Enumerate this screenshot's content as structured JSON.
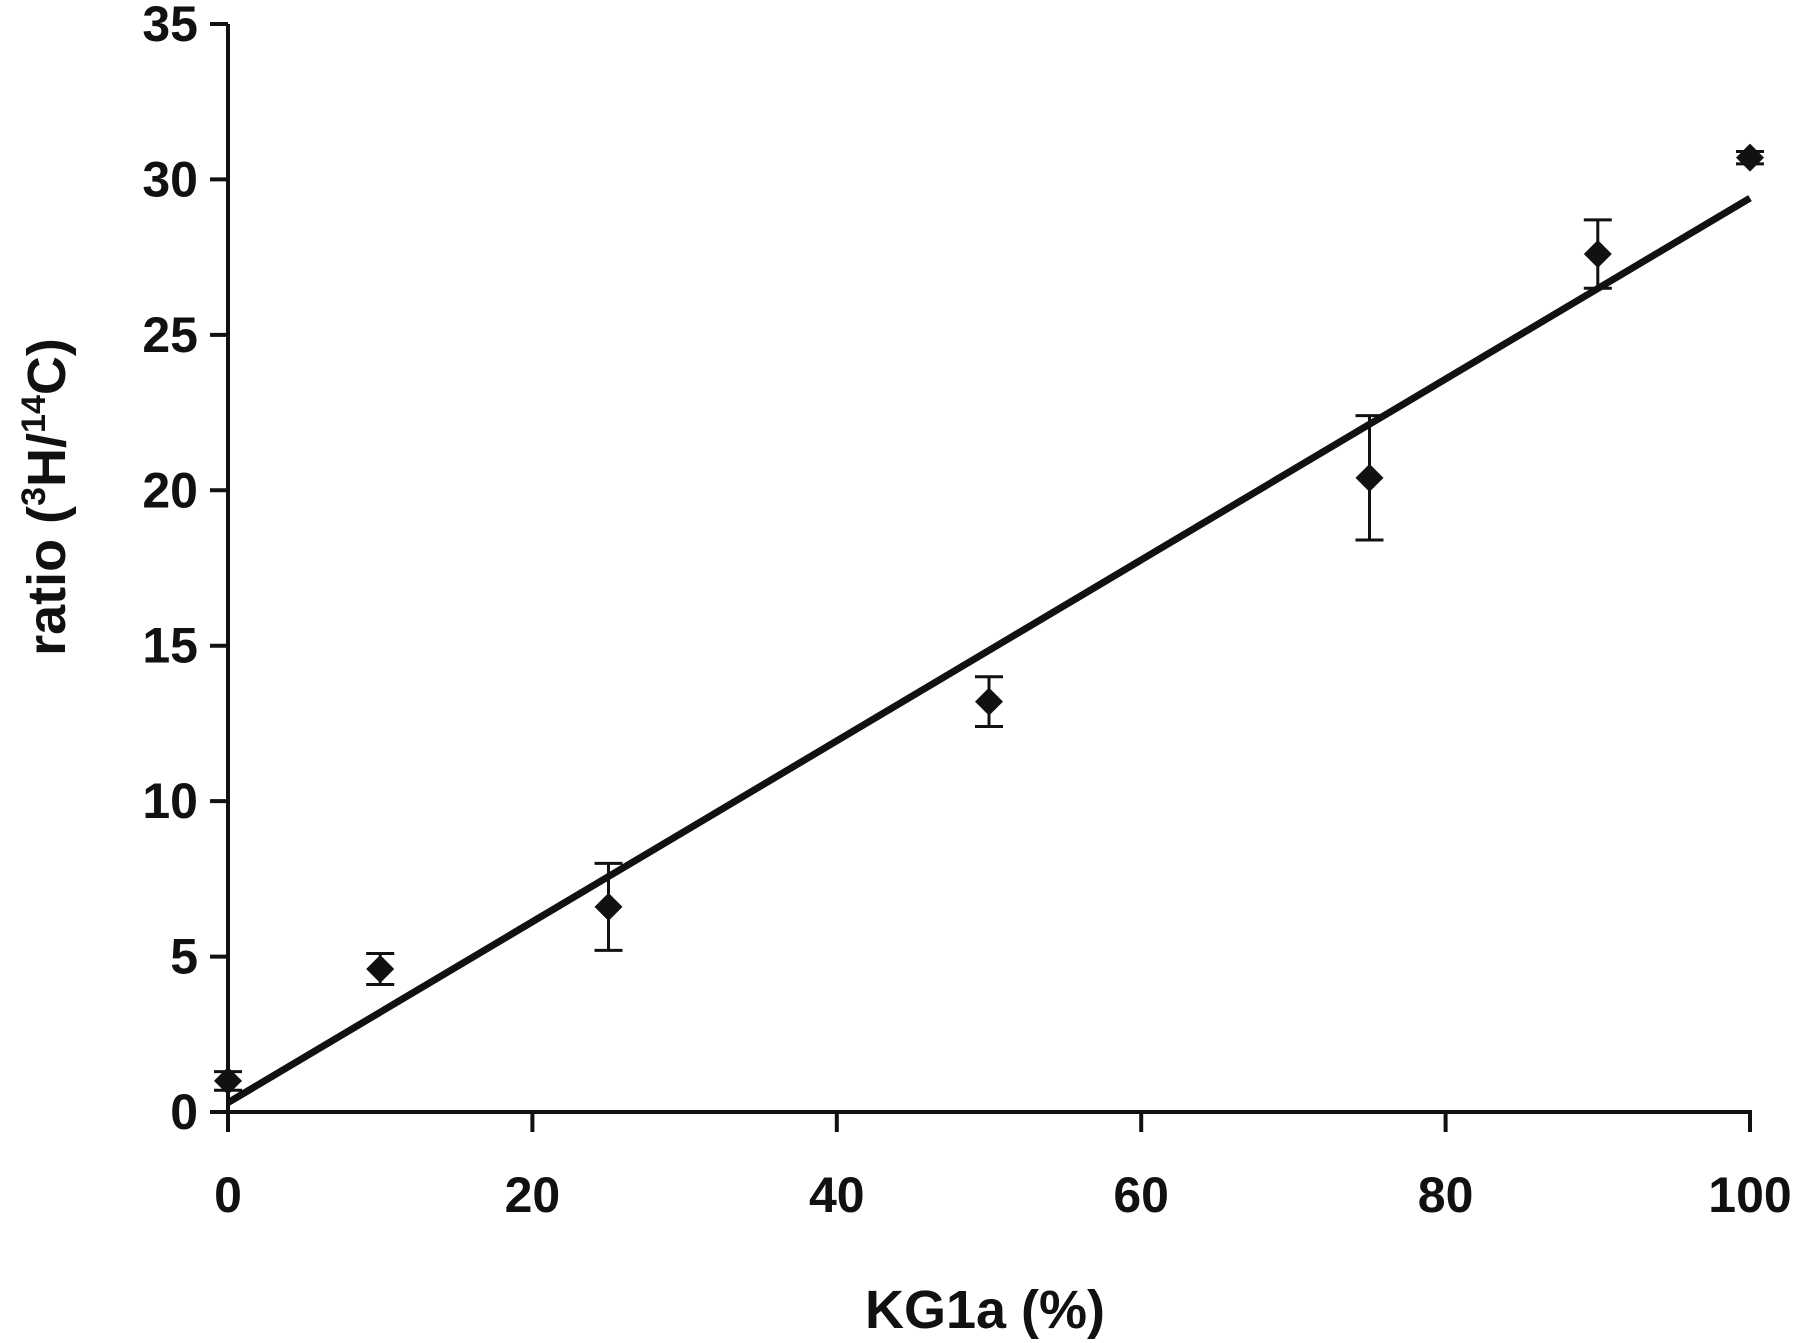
{
  "chart_data": {
    "type": "scatter",
    "title": "",
    "xlabel": "KG1a (%)",
    "ylabel_parts": {
      "prefix": "ratio (",
      "sup1": "3",
      "mid": "H/",
      "sup2": "14",
      "suffix": "C)"
    },
    "xlim": [
      0,
      100
    ],
    "ylim": [
      0,
      35
    ],
    "x_ticks": [
      0,
      20,
      40,
      60,
      80,
      100
    ],
    "y_ticks": [
      0,
      5,
      10,
      15,
      20,
      25,
      30,
      35
    ],
    "x_tick_labels": [
      "0",
      "20",
      "40",
      "60",
      "80",
      "100"
    ],
    "y_tick_labels": [
      "0",
      "5",
      "10",
      "15",
      "20",
      "25",
      "30",
      "35"
    ],
    "grid": false,
    "legend": "none",
    "series": [
      {
        "marker": "diamond",
        "color": "#111111",
        "points": [
          {
            "x": 0,
            "y": 1.0,
            "err": 0.3
          },
          {
            "x": 10,
            "y": 4.6,
            "err": 0.5
          },
          {
            "x": 25,
            "y": 6.6,
            "err": 1.4
          },
          {
            "x": 50,
            "y": 13.2,
            "err": 0.8
          },
          {
            "x": 75,
            "y": 20.4,
            "err": 2.0
          },
          {
            "x": 90,
            "y": 27.6,
            "err": 1.1
          },
          {
            "x": 100,
            "y": 30.7,
            "err": 0.2
          }
        ]
      }
    ],
    "fit_line": {
      "x": [
        0,
        100
      ],
      "y": [
        0.3,
        29.4
      ],
      "color": "#111111"
    }
  }
}
